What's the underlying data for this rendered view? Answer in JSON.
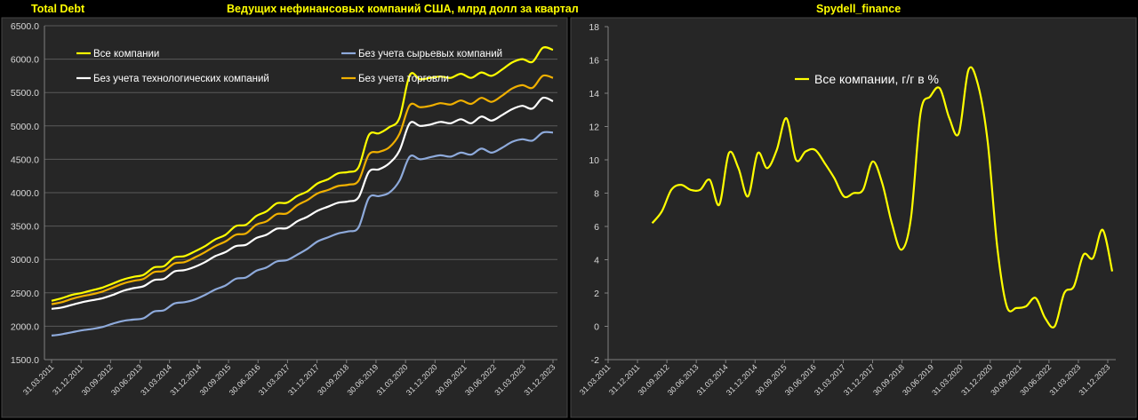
{
  "header": {
    "left_label": "Total Debt",
    "center_label": "Ведущих нефинансовых компаний США, млрд долл за квартал",
    "right_label": "Spydell_finance"
  },
  "colors": {
    "all": "#ffff00",
    "ex_commod": "#8eaadb",
    "ex_tech": "#ffffff",
    "ex_trade": "#f0b000",
    "panel": "#262626",
    "grid": "#5a5a5a",
    "frame": "#808080",
    "tick_text": "#d9d9d9"
  },
  "chart_data": [
    {
      "type": "line",
      "x_ticks": [
        "31.03.2011",
        "31.12.2011",
        "30.09.2012",
        "30.06.2013",
        "31.03.2014",
        "31.12.2014",
        "30.09.2015",
        "30.06.2016",
        "31.03.2017",
        "31.12.2017",
        "30.09.2018",
        "30.06.2019",
        "31.03.2020",
        "31.12.2020",
        "30.09.2021",
        "30.06.2022",
        "31.03.2023",
        "31.12.2023"
      ],
      "ylim": [
        1500,
        6500
      ],
      "y_ticks": [
        "1500.0",
        "2000.0",
        "2500.0",
        "3000.0",
        "3500.0",
        "4000.0",
        "4500.0",
        "5000.0",
        "5500.0",
        "6000.0",
        "6500.0"
      ],
      "legend_placement": "top-left",
      "grid": true,
      "series": [
        {
          "name": "Все компании",
          "color_key": "all",
          "values": [
            2380,
            2420,
            2470,
            2500,
            2540,
            2580,
            2640,
            2700,
            2740,
            2770,
            2880,
            2900,
            3030,
            3050,
            3120,
            3200,
            3300,
            3370,
            3500,
            3520,
            3650,
            3720,
            3840,
            3850,
            3950,
            4020,
            4140,
            4200,
            4290,
            4310,
            4380,
            4860,
            4890,
            4980,
            5120,
            5760,
            5700,
            5720,
            5740,
            5720,
            5780,
            5720,
            5800,
            5750,
            5840,
            5950,
            6000,
            5960,
            6170,
            6140
          ]
        },
        {
          "name": "Без учета сырьевых компаний",
          "color_key": "ex_commod",
          "values": [
            1860,
            1880,
            1910,
            1940,
            1960,
            1990,
            2040,
            2080,
            2100,
            2120,
            2220,
            2240,
            2340,
            2360,
            2400,
            2470,
            2550,
            2610,
            2710,
            2730,
            2830,
            2880,
            2970,
            2990,
            3070,
            3160,
            3270,
            3330,
            3390,
            3420,
            3480,
            3920,
            3950,
            4000,
            4180,
            4540,
            4500,
            4530,
            4560,
            4540,
            4600,
            4570,
            4660,
            4600,
            4670,
            4760,
            4800,
            4780,
            4900,
            4900
          ]
        },
        {
          "name": "Без учета технологических компаний",
          "color_key": "ex_tech",
          "values": [
            2260,
            2280,
            2320,
            2360,
            2390,
            2420,
            2470,
            2530,
            2570,
            2600,
            2690,
            2710,
            2820,
            2840,
            2890,
            2960,
            3050,
            3110,
            3200,
            3220,
            3320,
            3370,
            3460,
            3470,
            3570,
            3640,
            3730,
            3790,
            3850,
            3870,
            3930,
            4310,
            4350,
            4440,
            4630,
            5040,
            5000,
            5020,
            5060,
            5040,
            5100,
            5040,
            5140,
            5080,
            5160,
            5250,
            5300,
            5260,
            5420,
            5370
          ]
        },
        {
          "name": "Без учета торговли",
          "color_key": "ex_trade",
          "values": [
            2330,
            2360,
            2410,
            2450,
            2480,
            2520,
            2580,
            2640,
            2680,
            2710,
            2810,
            2830,
            2940,
            2960,
            3030,
            3110,
            3200,
            3270,
            3370,
            3390,
            3520,
            3570,
            3680,
            3690,
            3810,
            3890,
            3990,
            4040,
            4100,
            4120,
            4180,
            4570,
            4610,
            4680,
            4880,
            5310,
            5280,
            5300,
            5340,
            5320,
            5380,
            5330,
            5420,
            5360,
            5450,
            5560,
            5610,
            5570,
            5750,
            5720
          ]
        }
      ]
    },
    {
      "type": "line",
      "x_ticks": [
        "31.03.2011",
        "31.12.2011",
        "30.09.2012",
        "30.06.2013",
        "31.03.2014",
        "31.12.2014",
        "30.09.2015",
        "30.06.2016",
        "31.03.2017",
        "31.12.2017",
        "30.09.2018",
        "30.06.2019",
        "31.03.2020",
        "31.12.2020",
        "30.09.2021",
        "30.06.2022",
        "31.03.2023",
        "31.12.2023"
      ],
      "ylim": [
        -2,
        18
      ],
      "y_ticks": [
        "-2",
        "0",
        "2",
        "4",
        "6",
        "8",
        "10",
        "12",
        "14",
        "16",
        "18"
      ],
      "legend_placement": "top-center",
      "grid": false,
      "series": [
        {
          "name": "Все компании, г/г в %",
          "color_key": "all",
          "values": [
            6.2,
            6.9,
            8.2,
            8.5,
            8.2,
            8.2,
            8.8,
            7.3,
            10.4,
            9.5,
            7.8,
            10.4,
            9.5,
            10.6,
            12.5,
            10.0,
            10.5,
            10.6,
            9.8,
            8.9,
            7.8,
            8.0,
            8.2,
            9.9,
            8.6,
            6.2,
            4.6,
            6.5,
            12.8,
            13.8,
            14.3,
            12.5,
            11.6,
            15.4,
            14.5,
            11.1,
            4.8,
            1.2,
            1.1,
            1.2,
            1.7,
            0.5,
            0.0,
            2.0,
            2.4,
            4.3,
            4.1,
            5.8,
            3.3
          ],
          "start_tick_index": 1.5
        }
      ]
    }
  ]
}
